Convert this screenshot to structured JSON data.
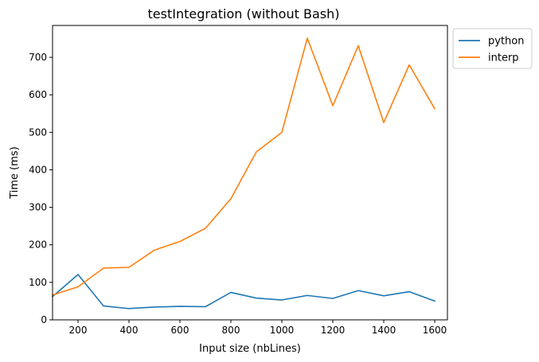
{
  "chart_data": {
    "type": "line",
    "title": "testIntegration (without Bash)",
    "xlabel": "Input size (nbLines)",
    "ylabel": "Time (ms)",
    "xlim": [
      100,
      1650
    ],
    "ylim": [
      0,
      785
    ],
    "xticks": [
      200,
      400,
      600,
      800,
      1000,
      1200,
      1400,
      1600
    ],
    "yticks": [
      0,
      100,
      200,
      300,
      400,
      500,
      600,
      700
    ],
    "grid": false,
    "legend_position": "outside upper right",
    "x": [
      100,
      200,
      300,
      400,
      500,
      600,
      700,
      800,
      900,
      1000,
      1100,
      1200,
      1300,
      1400,
      1500,
      1600
    ],
    "series": [
      {
        "name": "python",
        "color": "#1f77b4",
        "values": [
          62,
          121,
          37,
          30,
          34,
          36,
          35,
          73,
          58,
          53,
          65,
          57,
          78,
          64,
          75,
          50
        ]
      },
      {
        "name": "interp",
        "color": "#ff7f0e",
        "values": [
          66,
          88,
          138,
          140,
          186,
          209,
          244,
          323,
          448,
          500,
          751,
          571,
          731,
          526,
          680,
          563
        ]
      }
    ]
  }
}
